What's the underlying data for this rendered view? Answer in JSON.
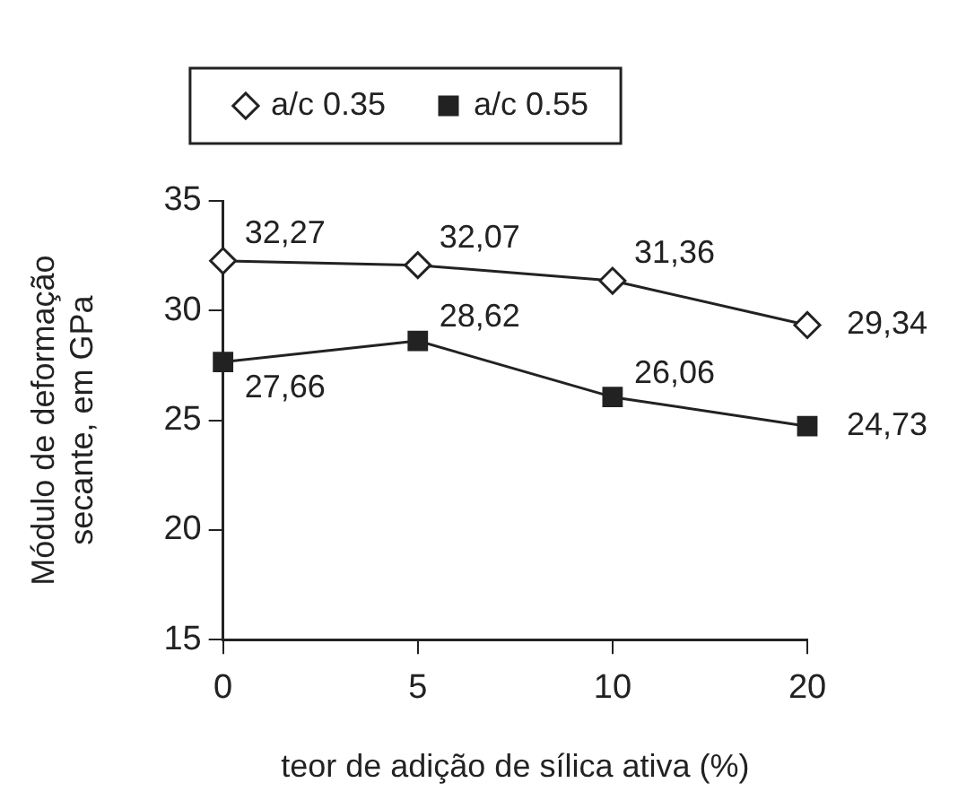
{
  "chart_data": {
    "type": "line",
    "xlabel": "teor de adição de sílica ativa (%)",
    "ylabel": "Módulo de deformação secante, em GPa",
    "categories": [
      "0",
      "5",
      "10",
      "20"
    ],
    "series": [
      {
        "name": "a/c 0.35",
        "color": "#222222",
        "marker": "diamond",
        "values": [
          32.27,
          32.07,
          31.36,
          29.34
        ],
        "value_labels": [
          "32,27",
          "32,07",
          "31,36",
          "29,34"
        ]
      },
      {
        "name": "a/c 0.55",
        "color": "#222222",
        "marker": "square",
        "values": [
          27.66,
          28.62,
          26.06,
          24.73
        ],
        "value_labels": [
          "27,66",
          "28,62",
          "26,06",
          "24,73"
        ]
      }
    ],
    "ylim": [
      15,
      35
    ],
    "yticks": [
      15,
      20,
      25,
      30,
      35
    ],
    "grid": false,
    "legend": "top",
    "line_style": "solid"
  }
}
